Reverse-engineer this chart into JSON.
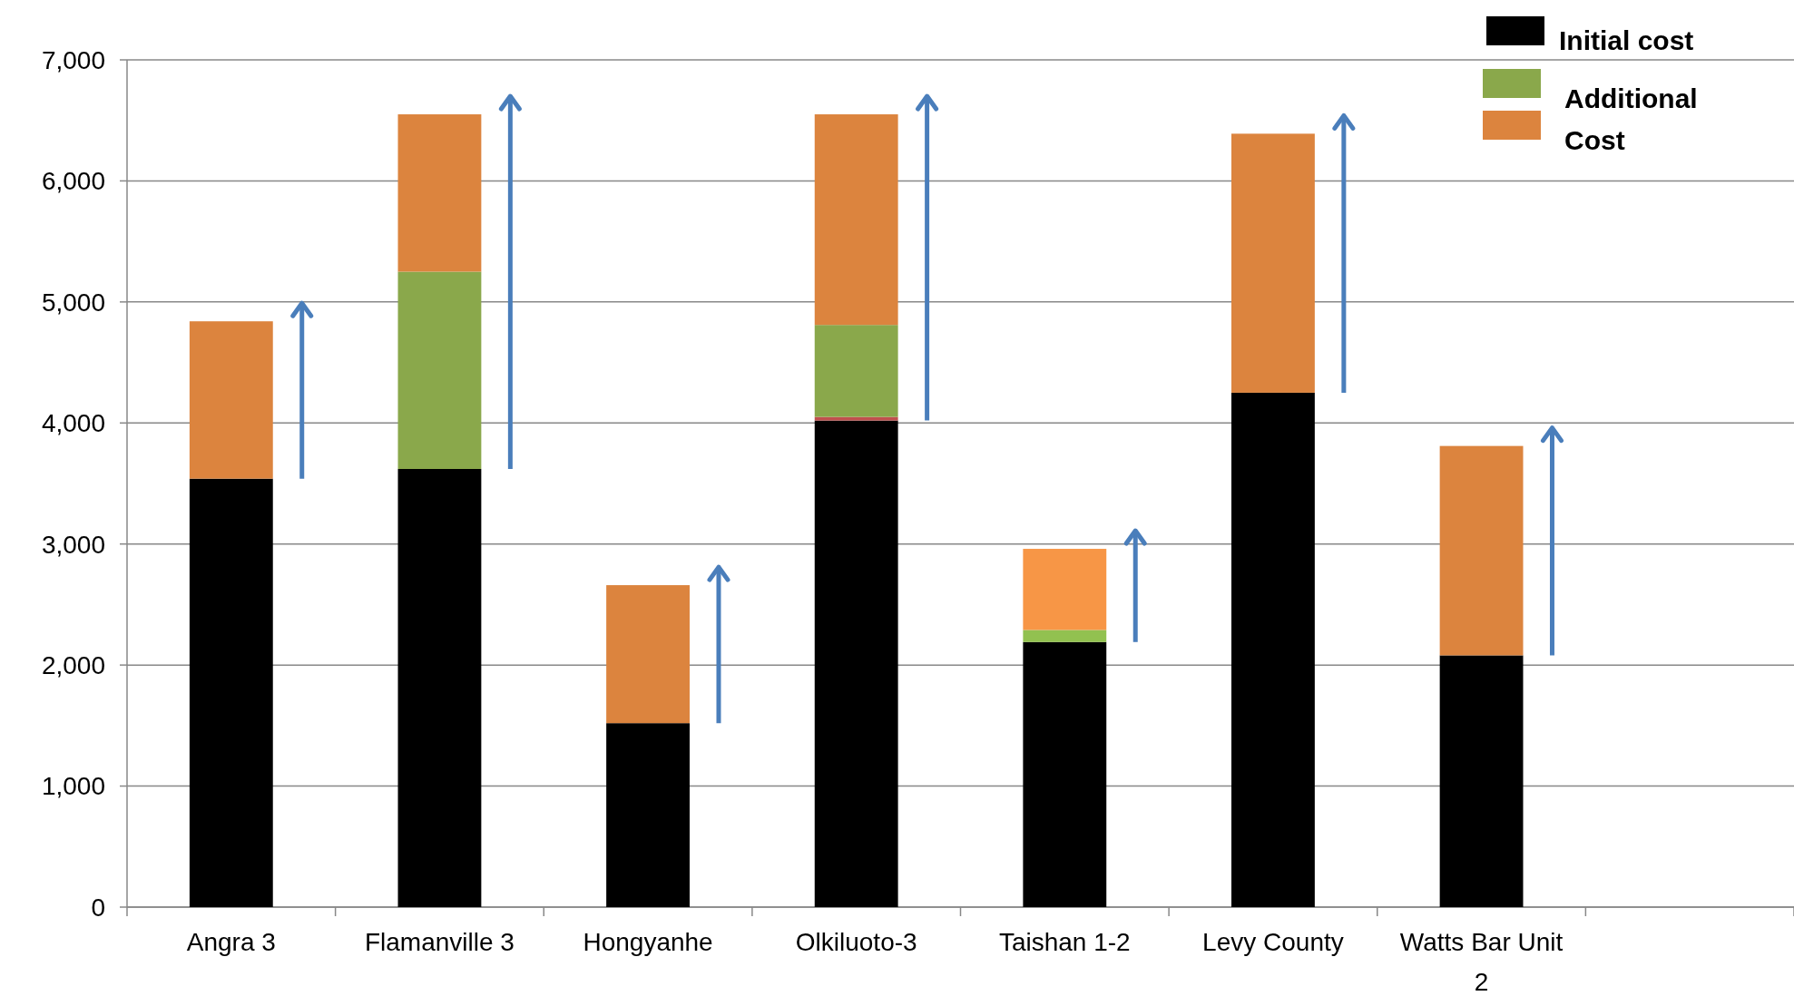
{
  "chart_data": {
    "type": "bar",
    "stacked": true,
    "categories": [
      "Angra 3",
      "Flamanville 3",
      "Hongyanhe",
      "Olkiluoto-3",
      "Taishan 1-2",
      "Levy County",
      "Watts Bar Unit 2",
      null
    ],
    "series": [
      {
        "name": "Initial cost",
        "color": "#000000",
        "values": [
          3540,
          3620,
          1520,
          4020,
          2190,
          4250,
          2080,
          null
        ]
      },
      {
        "color": "#c0504d",
        "values": [
          null,
          null,
          null,
          30,
          null,
          null,
          null,
          null
        ]
      },
      {
        "name": "Additional",
        "color": "#8aa84b",
        "colors": [
          "#8aa84b",
          "#8aa84b",
          "#8aa84b",
          "#8aa84b",
          "#92c150",
          "#8aa84b",
          "#8aa84b",
          "#8aa84b"
        ],
        "values": [
          null,
          1630,
          null,
          760,
          100,
          null,
          null,
          null
        ]
      },
      {
        "name": "Cost",
        "color": "#dc843e",
        "colors": [
          "#dc843e",
          "#dc843e",
          "#dc843e",
          "#dc843e",
          "#f79646",
          "#dc843e",
          "#dc843e",
          "#dc843e"
        ],
        "values": [
          1300,
          1300,
          1140,
          1740,
          670,
          2140,
          1730,
          null
        ]
      }
    ],
    "ylim": [
      0,
      7000
    ],
    "yticks": [
      0,
      {
        "value": 1000,
        "label": "1,000"
      },
      {
        "value": 2000,
        "label": "2,000"
      },
      {
        "value": 3000,
        "label": "3,000"
      },
      {
        "value": 4000,
        "label": "4,000"
      },
      {
        "value": 5000,
        "label": "5,000"
      },
      {
        "value": 6000,
        "label": "6,000"
      },
      {
        "value": 7000,
        "label": "7,000"
      }
    ],
    "grid": "y",
    "legend": "top right"
  }
}
